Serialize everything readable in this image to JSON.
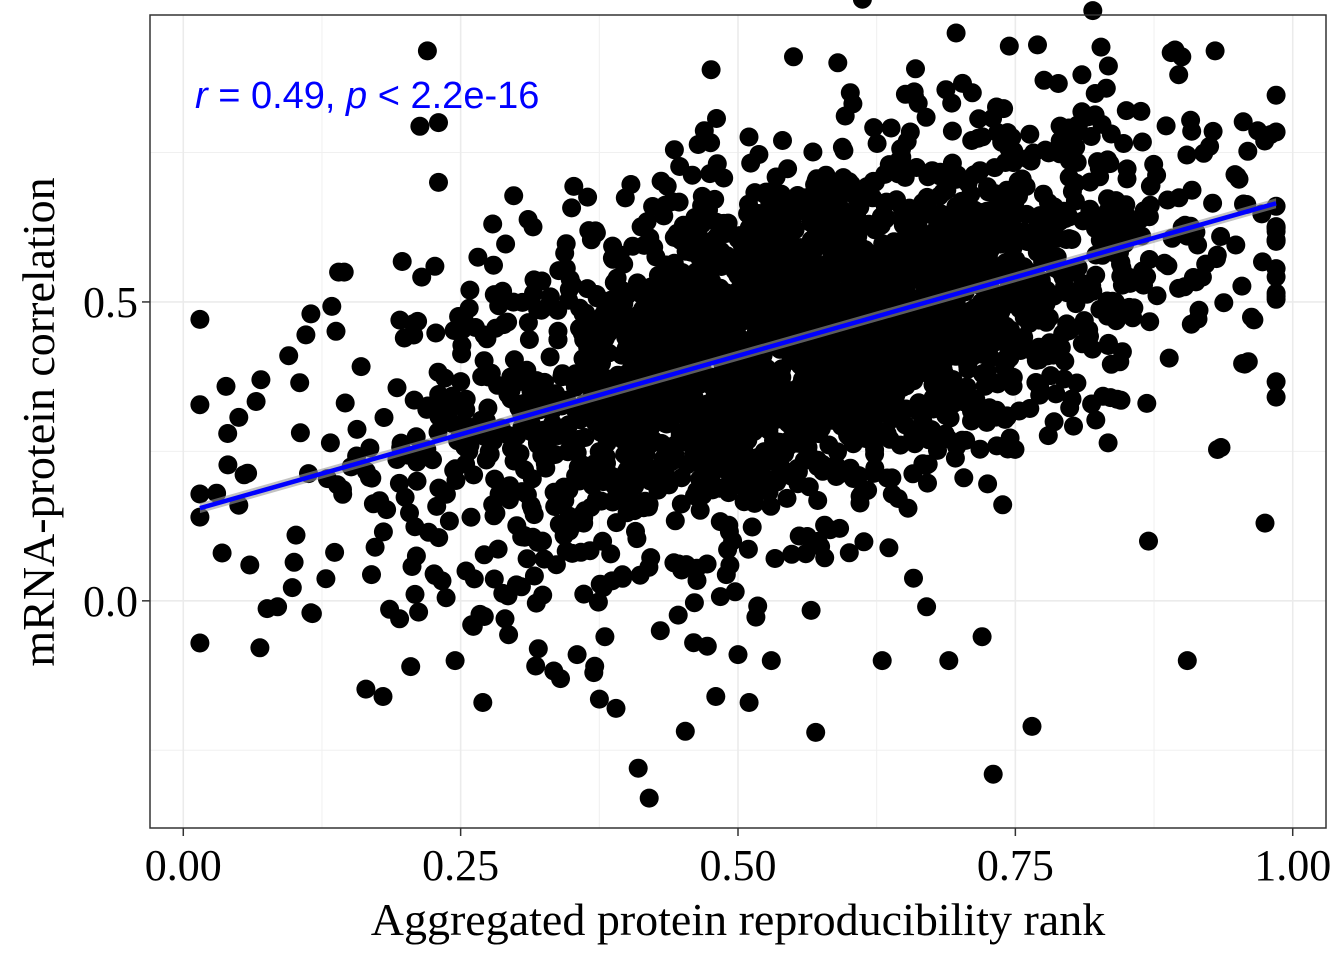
{
  "chart_data": {
    "type": "scatter",
    "xlabel": "Aggregated protein reproducibility rank",
    "ylabel": "mRNA-protein correlation",
    "xlim": [
      -0.03,
      1.03
    ],
    "ylim": [
      -0.38,
      0.98
    ],
    "x_ticks": [
      0.0,
      0.25,
      0.5,
      0.75,
      1.0
    ],
    "x_tick_labels": [
      "0.00",
      "0.25",
      "0.50",
      "0.75",
      "1.00"
    ],
    "y_ticks": [
      0.0,
      0.5
    ],
    "y_tick_labels": [
      "0.0",
      "0.5"
    ],
    "grid": true,
    "point_color": "#000000",
    "series": [
      {
        "points_visible_outliers": [
          [
            0.015,
            0.14
          ],
          [
            0.03,
            0.18
          ],
          [
            0.035,
            0.08
          ],
          [
            0.04,
            0.28
          ],
          [
            0.05,
            0.16
          ],
          [
            0.06,
            0.06
          ],
          [
            0.07,
            0.37
          ],
          [
            0.085,
            -0.01
          ],
          [
            0.095,
            0.41
          ],
          [
            0.115,
            -0.02
          ],
          [
            0.115,
            0.48
          ],
          [
            0.14,
            0.55
          ],
          [
            0.145,
            0.55
          ],
          [
            0.18,
            -0.16
          ],
          [
            0.195,
            -0.03
          ],
          [
            0.205,
            -0.11
          ],
          [
            0.22,
            0.92
          ],
          [
            0.23,
            0.8
          ],
          [
            0.23,
            0.7
          ],
          [
            0.245,
            -0.1
          ],
          [
            0.26,
            -0.04
          ],
          [
            0.27,
            -0.17
          ],
          [
            0.29,
            -0.03
          ],
          [
            0.32,
            -0.08
          ],
          [
            0.34,
            -0.13
          ],
          [
            0.355,
            -0.09
          ],
          [
            0.37,
            -0.12
          ],
          [
            0.38,
            -0.06
          ],
          [
            0.39,
            -0.18
          ],
          [
            0.41,
            -0.28
          ],
          [
            0.42,
            -0.33
          ],
          [
            0.43,
            -0.05
          ],
          [
            0.46,
            -0.07
          ],
          [
            0.48,
            -0.16
          ],
          [
            0.5,
            -0.09
          ],
          [
            0.51,
            -0.17
          ],
          [
            0.53,
            -0.1
          ],
          [
            0.55,
            0.91
          ],
          [
            0.57,
            -0.22
          ],
          [
            0.59,
            0.9
          ],
          [
            0.63,
            -0.1
          ],
          [
            0.66,
            0.89
          ],
          [
            0.67,
            -0.01
          ],
          [
            0.69,
            -0.1
          ],
          [
            0.72,
            -0.06
          ],
          [
            0.73,
            -0.29
          ],
          [
            0.77,
            0.93
          ],
          [
            0.765,
            -0.21
          ],
          [
            0.81,
            0.88
          ],
          [
            0.85,
            0.82
          ],
          [
            0.87,
            0.1
          ],
          [
            0.9,
            0.91
          ],
          [
            0.905,
            -0.1
          ],
          [
            0.93,
            0.92
          ],
          [
            0.95,
            0.71
          ],
          [
            0.96,
            0.4
          ],
          [
            0.965,
            0.47
          ],
          [
            0.975,
            0.13
          ],
          [
            0.98,
            0.78
          ]
        ]
      }
    ],
    "trend_line": {
      "x": [
        0.015,
        0.985
      ],
      "y": [
        0.155,
        0.665
      ],
      "color": "#0000FF",
      "ci_color": "#999999"
    },
    "annotation": {
      "r_symbol": "r",
      "r_text": " = 0.49, ",
      "p_symbol": "p",
      "p_text": " < 2.2e-16",
      "color": "#0000FF"
    }
  }
}
